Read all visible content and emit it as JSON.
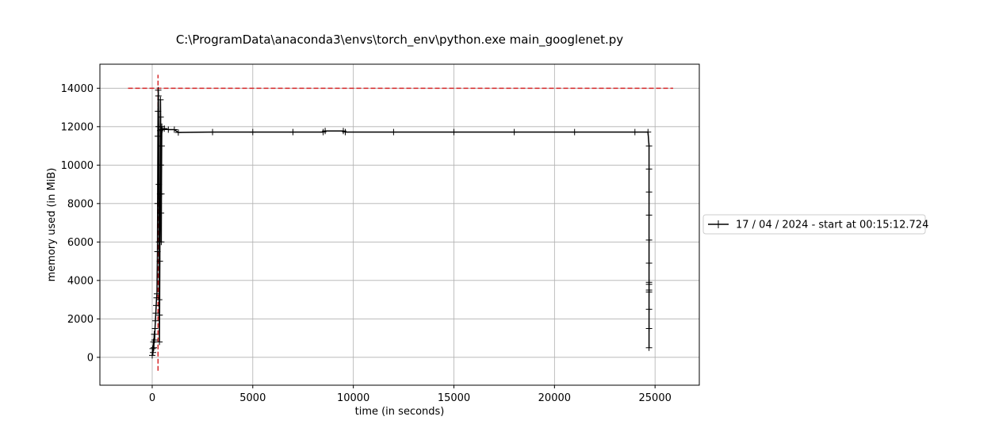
{
  "chart_data": {
    "type": "line",
    "title": "C:\\ProgramData\\anaconda3\\envs\\torch_env\\python.exe main_googlenet.py",
    "xlabel": "time (in seconds)",
    "ylabel": "memory used (in MiB)",
    "xlim": [
      -2600,
      27200
    ],
    "ylim": [
      -1450,
      15250
    ],
    "xticks": [
      0,
      5000,
      10000,
      15000,
      20000,
      25000
    ],
    "yticks": [
      0,
      2000,
      4000,
      6000,
      8000,
      10000,
      12000,
      14000
    ],
    "grid": true,
    "legend_position": "right-outside",
    "series": [
      {
        "name": "17 / 04 / 2024 - start at 00:15:12.724",
        "color": "#000000",
        "marker": "+",
        "points": [
          [
            0,
            100
          ],
          [
            20,
            450
          ],
          [
            40,
            250
          ],
          [
            60,
            800
          ],
          [
            80,
            500
          ],
          [
            100,
            1200
          ],
          [
            120,
            900
          ],
          [
            140,
            1500
          ],
          [
            160,
            1900
          ],
          [
            180,
            2300
          ],
          [
            200,
            2700
          ],
          [
            220,
            3100
          ],
          [
            240,
            3300
          ],
          [
            260,
            5500
          ],
          [
            270,
            8000
          ],
          [
            280,
            11500
          ],
          [
            290,
            12800
          ],
          [
            300,
            13900
          ],
          [
            310,
            13600
          ],
          [
            320,
            12000
          ],
          [
            330,
            9000
          ],
          [
            340,
            6000
          ],
          [
            350,
            3000
          ],
          [
            360,
            800
          ],
          [
            370,
            2200
          ],
          [
            380,
            5000
          ],
          [
            390,
            8500
          ],
          [
            400,
            11800
          ],
          [
            410,
            13400
          ],
          [
            420,
            12500
          ],
          [
            430,
            10000
          ],
          [
            440,
            7500
          ],
          [
            450,
            6000
          ],
          [
            460,
            8500
          ],
          [
            470,
            11000
          ],
          [
            480,
            12000
          ],
          [
            500,
            11850
          ],
          [
            600,
            11900
          ],
          [
            800,
            11850
          ],
          [
            1100,
            11850
          ],
          [
            1300,
            11700
          ],
          [
            3000,
            11720
          ],
          [
            5000,
            11720
          ],
          [
            7000,
            11720
          ],
          [
            8500,
            11720
          ],
          [
            8600,
            11780
          ],
          [
            9500,
            11780
          ],
          [
            9600,
            11720
          ],
          [
            12000,
            11720
          ],
          [
            15000,
            11720
          ],
          [
            18000,
            11720
          ],
          [
            21000,
            11720
          ],
          [
            24000,
            11720
          ],
          [
            24650,
            11720
          ],
          [
            24700,
            11000
          ],
          [
            24700,
            9800
          ],
          [
            24700,
            8600
          ],
          [
            24700,
            7400
          ],
          [
            24700,
            6100
          ],
          [
            24700,
            4900
          ],
          [
            24700,
            3900
          ],
          [
            24700,
            3800
          ],
          [
            24700,
            3500
          ],
          [
            24700,
            3400
          ],
          [
            24700,
            2500
          ],
          [
            24700,
            1500
          ],
          [
            24700,
            500
          ]
        ]
      }
    ],
    "reference_lines": [
      {
        "orientation": "horizontal",
        "value": 14000,
        "from": -1200,
        "to": 25900,
        "color": "#d62728",
        "style": "dashed"
      },
      {
        "orientation": "vertical",
        "value": 290,
        "from": -700,
        "to": 14700,
        "color": "#d62728",
        "style": "dashed"
      }
    ]
  }
}
